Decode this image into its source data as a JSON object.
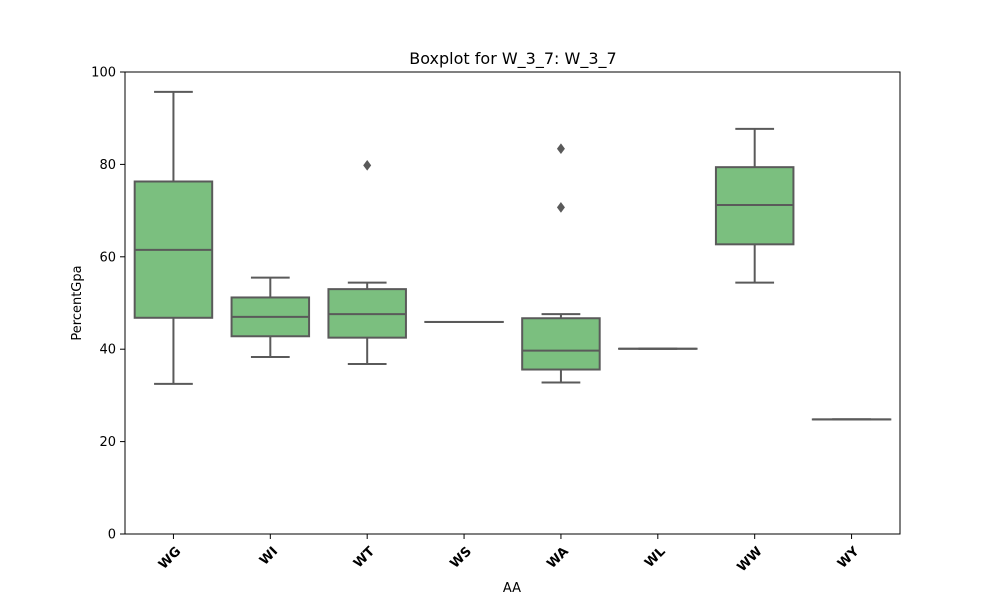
{
  "chart_data": {
    "type": "box",
    "title": "Boxplot for W_3_7: W_3_7",
    "xlabel": "AA",
    "ylabel": "PercentGpa",
    "ylim": [
      0,
      100
    ],
    "yticks": [
      0,
      20,
      40,
      60,
      80,
      100
    ],
    "grid": false,
    "box_color": "#7bbf7f",
    "line_color": "#5a5a5a",
    "categories": [
      "WG",
      "WI",
      "WT",
      "WS",
      "WA",
      "WL",
      "WW",
      "WY"
    ],
    "boxes": [
      {
        "category": "WG",
        "whisker_low": 32.5,
        "q1": 46.8,
        "median": 61.5,
        "q3": 76.3,
        "whisker_high": 95.7,
        "outliers": []
      },
      {
        "category": "WI",
        "whisker_low": 38.3,
        "q1": 42.8,
        "median": 47.0,
        "q3": 51.2,
        "whisker_high": 55.5,
        "outliers": []
      },
      {
        "category": "WT",
        "whisker_low": 36.8,
        "q1": 42.5,
        "median": 47.6,
        "q3": 53.0,
        "whisker_high": 54.4,
        "outliers": [
          79.8
        ]
      },
      {
        "category": "WS",
        "whisker_low": 45.9,
        "q1": 45.9,
        "median": 45.9,
        "q3": 45.9,
        "whisker_high": 45.9,
        "outliers": []
      },
      {
        "category": "WA",
        "whisker_low": 32.8,
        "q1": 35.6,
        "median": 39.7,
        "q3": 46.7,
        "whisker_high": 47.6,
        "outliers": [
          70.7,
          83.4
        ]
      },
      {
        "category": "WL",
        "whisker_low": 40.1,
        "q1": 40.1,
        "median": 40.1,
        "q3": 40.1,
        "whisker_high": 40.1,
        "outliers": []
      },
      {
        "category": "WW",
        "whisker_low": 54.4,
        "q1": 62.7,
        "median": 71.2,
        "q3": 79.4,
        "whisker_high": 87.7,
        "outliers": []
      },
      {
        "category": "WY",
        "whisker_low": 24.8,
        "q1": 24.8,
        "median": 24.8,
        "q3": 24.8,
        "whisker_high": 24.8,
        "outliers": []
      }
    ]
  }
}
